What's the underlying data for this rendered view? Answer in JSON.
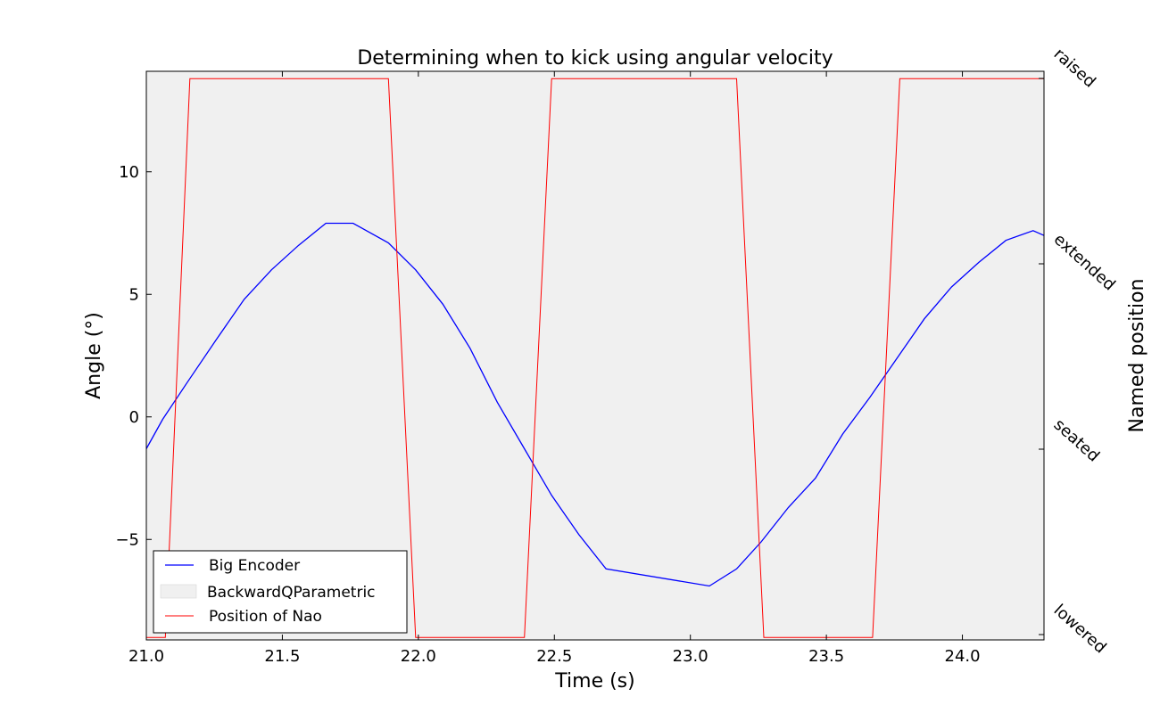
{
  "chart_data": {
    "type": "line",
    "title": "Determining when to kick using angular velocity",
    "xlabel": "Time (s)",
    "ylabel": "Angle (°)",
    "y2label": "Named position",
    "xlim": [
      21.0,
      24.3
    ],
    "ylim": [
      -9.1,
      14.1
    ],
    "xticks": [
      "21.0",
      "21.5",
      "22.0",
      "22.5",
      "23.0",
      "23.5",
      "24.0"
    ],
    "yticks": [
      "−5",
      "0",
      "5",
      "10"
    ],
    "y2ticks": [
      "lowered",
      "seated",
      "extended",
      "raised"
    ],
    "plot_background": "#f0f0f0",
    "grid": false,
    "legend_position": "lower-left",
    "legend": [
      "Big Encoder",
      "BackwardQParametric",
      "Position of Nao"
    ],
    "colors": {
      "encoder": "#0000ff",
      "nao": "#ff0000",
      "fill": "#f0f0f0"
    },
    "series": [
      {
        "name": "Big Encoder",
        "color": "#0000ff",
        "x": [
          21.0,
          21.06,
          21.15,
          21.26,
          21.36,
          21.46,
          21.56,
          21.66,
          21.76,
          21.89,
          21.99,
          22.09,
          22.19,
          22.29,
          22.39,
          22.49,
          22.59,
          22.69,
          23.07,
          23.17,
          23.26,
          23.36,
          23.46,
          23.56,
          23.66,
          23.76,
          23.86,
          23.96,
          24.06,
          24.16,
          24.26,
          24.3
        ],
        "y": [
          -1.3,
          -0.1,
          1.4,
          3.2,
          4.8,
          6.0,
          7.0,
          7.9,
          7.9,
          7.1,
          6.0,
          4.6,
          2.8,
          0.6,
          -1.3,
          -3.2,
          -4.8,
          -6.2,
          -6.9,
          -6.2,
          -5.1,
          -3.7,
          -2.5,
          -0.7,
          0.8,
          2.4,
          4.0,
          5.3,
          6.3,
          7.2,
          7.6,
          7.4
        ]
      },
      {
        "name": "BackwardQParametric",
        "color": "#f0f0f0",
        "x": [
          21.0,
          24.3
        ],
        "y": [
          14.1,
          14.1
        ],
        "fill_to": -9.1
      },
      {
        "name": "Position of Nao",
        "color": "#ff0000",
        "x": [
          21.0,
          21.07,
          21.16,
          21.89,
          21.99,
          22.39,
          22.49,
          23.17,
          23.27,
          23.67,
          23.77,
          24.3
        ],
        "y": [
          -9.0,
          -9.0,
          13.8,
          13.8,
          -9.0,
          -9.0,
          13.8,
          13.8,
          -9.0,
          -9.0,
          13.8,
          13.8
        ]
      }
    ]
  }
}
